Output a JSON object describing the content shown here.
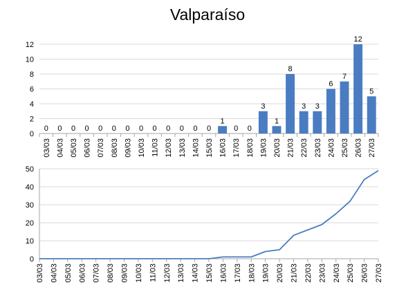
{
  "title": "Valparaíso",
  "colors": {
    "bar": "#4a7cc2",
    "line": "#4a7cc2",
    "grid": "#d9d9d9",
    "axis": "#a6a6a6"
  },
  "chart_data": [
    {
      "type": "bar",
      "categories": [
        "03/03",
        "04/03",
        "05/03",
        "06/03",
        "07/03",
        "08/03",
        "09/03",
        "10/03",
        "11/03",
        "12/03",
        "13/03",
        "14/03",
        "15/03",
        "16/03",
        "17/03",
        "18/03",
        "19/03",
        "20/03",
        "21/03",
        "22/03",
        "23/03",
        "24/03",
        "25/03",
        "26/03",
        "27/03"
      ],
      "values": [
        0,
        0,
        0,
        0,
        0,
        0,
        0,
        0,
        0,
        0,
        0,
        0,
        0,
        1,
        0,
        0,
        3,
        1,
        8,
        3,
        3,
        6,
        7,
        12,
        5
      ],
      "ylim": [
        0,
        12
      ],
      "yticks": [
        0,
        2,
        4,
        6,
        8,
        10,
        12
      ],
      "data_labels": true,
      "grid": true
    },
    {
      "type": "line",
      "categories": [
        "03/03",
        "04/03",
        "05/03",
        "06/03",
        "07/03",
        "08/03",
        "09/03",
        "10/03",
        "11/03",
        "12/03",
        "13/03",
        "14/03",
        "15/03",
        "16/03",
        "17/03",
        "18/03",
        "19/03",
        "20/03",
        "21/03",
        "22/03",
        "23/03",
        "24/03",
        "25/03",
        "26/03",
        "27/03"
      ],
      "values": [
        0,
        0,
        0,
        0,
        0,
        0,
        0,
        0,
        0,
        0,
        0,
        0,
        0,
        1,
        1,
        1,
        4,
        5,
        13,
        16,
        19,
        25,
        32,
        44,
        49
      ],
      "ylim": [
        0,
        50
      ],
      "yticks": [
        0,
        10,
        20,
        30,
        40,
        50
      ],
      "grid": true
    }
  ]
}
